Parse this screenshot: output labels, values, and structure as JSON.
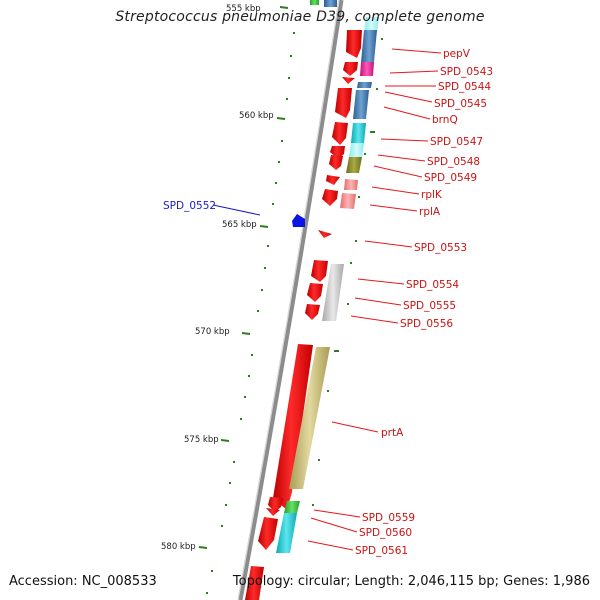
{
  "title": "Streptococcus pneumoniae D39, complete genome",
  "footer": {
    "accession": "Accession: NC_008533",
    "summary": "Topology: circular; Length: 2,046,115 bp; Genes: 1,986"
  },
  "scale": {
    "ticks": [
      {
        "label": "555 kbp"
      },
      {
        "label": "560 kbp"
      },
      {
        "label": "565 kbp"
      },
      {
        "label": "570 kbp"
      },
      {
        "label": "575 kbp"
      },
      {
        "label": "580 kbp"
      }
    ]
  },
  "gene_labels": {
    "forward": [
      "pepV",
      "SPD_0543",
      "SPD_0544",
      "SPD_0545",
      "brnQ",
      "SPD_0547",
      "SPD_0548",
      "SPD_0549",
      "rplK",
      "rplA",
      "SPD_0553",
      "SPD_0554",
      "SPD_0555",
      "SPD_0556",
      "prtA",
      "SPD_0559",
      "SPD_0560",
      "SPD_0561"
    ],
    "reverse": [
      "SPD_0552"
    ]
  },
  "colors": {
    "backbone": "#8c8c8c",
    "gene_forward": "#e8161b",
    "gene_reverse": "#0a14e6",
    "label_forward": "#cc1111",
    "label_reverse": "#1a1acc",
    "tick": "#2e7d1f",
    "cog_blue": "#4f86b8",
    "cog_cyan": "#1ec8d2",
    "cog_magenta": "#e8289a",
    "cog_olive": "#8f8f2d",
    "cog_pink": "#ef8d8d",
    "cog_gray": "#c4c4c4",
    "cog_khaki": "#c9bd78",
    "cog_green": "#3fbf3f"
  }
}
